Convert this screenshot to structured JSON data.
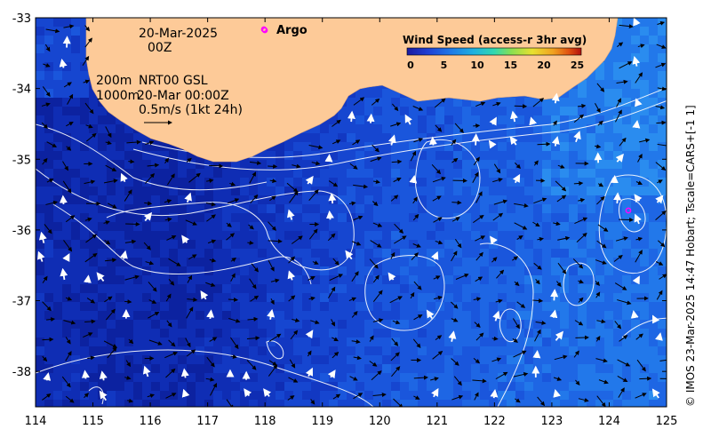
{
  "map": {
    "date_line1": "20-Mar-2025",
    "date_line2": "00Z",
    "depth_labels": [
      "200m",
      "1000m"
    ],
    "product_line1": "NRT00 GSL",
    "product_line2": "20-Mar 00:00Z",
    "scale_label": "0.5m/s (1kt 24h)",
    "argo_label": "Argo",
    "credit": "© IMOS 23-Mar-2025 14:47 Hobart; Tscale=CARS+[-1 1]",
    "x_ticks": [
      "114",
      "115",
      "116",
      "117",
      "118",
      "119",
      "120",
      "121",
      "122",
      "123",
      "124",
      "125"
    ],
    "y_ticks": [
      "-33",
      "-34",
      "-35",
      "-36",
      "-37",
      "-38"
    ],
    "x_range": [
      114,
      125
    ],
    "y_range": [
      -38.5,
      -33
    ]
  },
  "legend": {
    "title": "Wind Speed (access-r 3hr avg)",
    "ticks": [
      "0",
      "5",
      "10",
      "15",
      "20",
      "25"
    ],
    "colors": [
      "#1a1aa0",
      "#1f3fd4",
      "#1e78e8",
      "#1fb0e0",
      "#30d8b0",
      "#8ae050",
      "#e8e030",
      "#f0a020",
      "#e05010",
      "#b01010"
    ]
  },
  "colors": {
    "land": "#fdca98",
    "ocean_dark": "#0b1f9a",
    "ocean_mid": "#1540c8",
    "ocean_light": "#1f70e6",
    "argo": "#ff00ff"
  },
  "argo_floats": [
    {
      "lon": 118.0,
      "lat": -33.2
    },
    {
      "lon": 124.4,
      "lat": -35.8
    }
  ]
}
